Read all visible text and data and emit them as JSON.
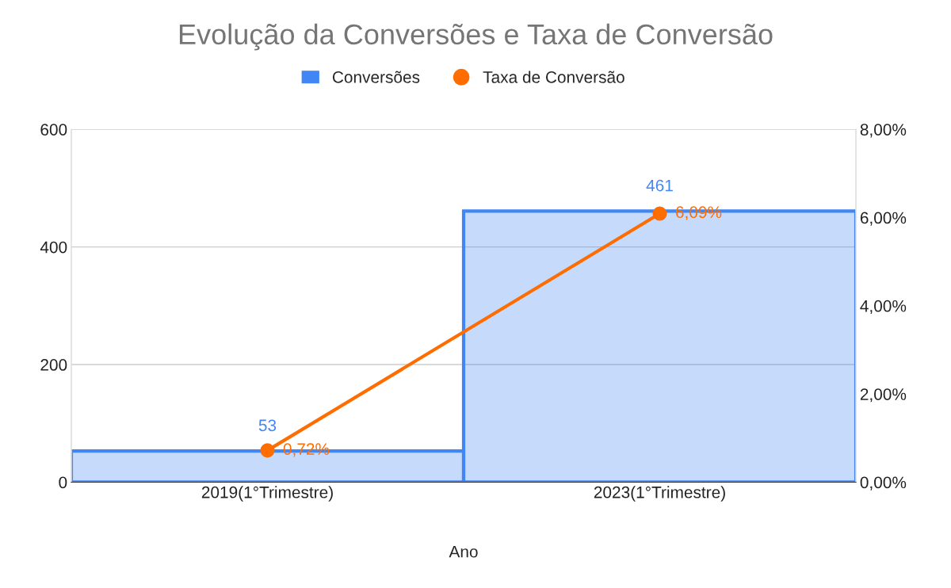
{
  "chart_data": {
    "type": "line",
    "title": "Evolução da Conversões e Taxa de Conversão",
    "xlabel": "Ano",
    "categories": [
      "2019(1°Trimestre)",
      "2023(1°Trimestre)"
    ],
    "series": [
      {
        "name": "Conversões",
        "type": "bar",
        "color": "#4285f4",
        "values": [
          53,
          461
        ],
        "value_labels": [
          "53",
          "461"
        ]
      },
      {
        "name": "Taxa de Conversão",
        "axis": "y2",
        "color": "#ff6d01",
        "marker": "circle",
        "values": [
          0.72,
          6.09
        ],
        "value_labels": [
          "0,72%",
          "6,09%"
        ]
      }
    ],
    "ylim": [
      0,
      600
    ],
    "yticks": [
      0,
      200,
      400,
      600
    ],
    "y2lim": [
      0,
      8
    ],
    "y2ticks": [
      {
        "value": 0,
        "label": "0,00%"
      },
      {
        "value": 2,
        "label": "2,00%"
      },
      {
        "value": 4,
        "label": "4,00%"
      },
      {
        "value": 6,
        "label": "6,00%"
      },
      {
        "value": 8,
        "label": "8,00%"
      }
    ],
    "grid": "y",
    "legend": "top"
  }
}
